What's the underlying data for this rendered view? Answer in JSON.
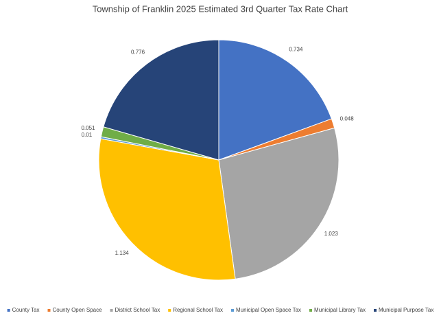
{
  "chart_data": {
    "type": "pie",
    "title": "Township of Franklin 2025 Estimated 3rd Quarter Tax Rate Chart",
    "categories": [
      "County Tax",
      "County Open Space",
      "District School Tax",
      "Regional School Tax",
      "Municipal Open Space Tax",
      "Municipal Library Tax",
      "Municipal Purpose Tax"
    ],
    "values": [
      0.734,
      0.048,
      1.023,
      1.134,
      0.01,
      0.051,
      0.776
    ],
    "colors": [
      "#4472c4",
      "#ed7d31",
      "#a5a5a5",
      "#ffc000",
      "#5b9bd5",
      "#70ad47",
      "#264478"
    ],
    "legend": "bottom"
  }
}
